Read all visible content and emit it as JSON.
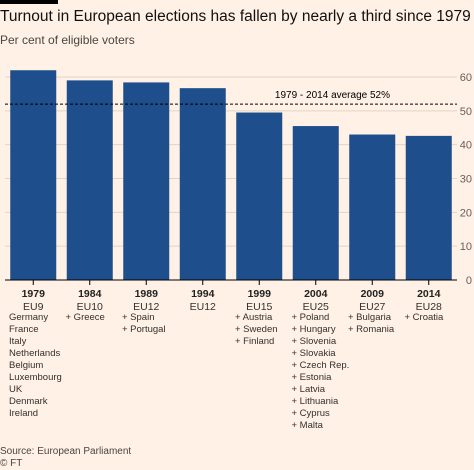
{
  "title": "Turnout in European elections has fallen by nearly a third since 1979",
  "subtitle": "Per cent of eligible voters",
  "source": "Source: European Parliament",
  "credit": "© FT",
  "chart_data": {
    "type": "bar",
    "categories": [
      "1979",
      "1984",
      "1989",
      "1994",
      "1999",
      "2004",
      "2009",
      "2014"
    ],
    "eu_labels": [
      "EU9",
      "EU10",
      "EU12",
      "EU12",
      "EU15",
      "EU25",
      "EU27",
      "EU28"
    ],
    "values": [
      62,
      59,
      58.4,
      56.7,
      49.5,
      45.5,
      43,
      42.6
    ],
    "members": [
      [
        "Germany",
        "France",
        "Italy",
        "Netherlands",
        "Belgium",
        "Luxembourg",
        "UK",
        "Denmark",
        "Ireland"
      ],
      [
        "+ Greece"
      ],
      [
        "+ Spain",
        "+ Portugal"
      ],
      [],
      [
        "+ Austria",
        "+ Sweden",
        "+ Finland"
      ],
      [
        "+ Poland",
        "+ Hungary",
        "+ Slovenia",
        "+ Slovakia",
        "+ Czech Rep.",
        "+ Estonia",
        "+ Latvia",
        "+ Lithuania",
        "+ Cyprus",
        "+ Malta"
      ],
      [
        "+ Bulgaria",
        "+ Romania"
      ],
      [
        "+ Croatia"
      ]
    ],
    "yticks": [
      0,
      10,
      20,
      30,
      40,
      50,
      60
    ],
    "ylim": [
      0,
      62
    ],
    "average": {
      "value": 52,
      "label": "1979 - 2014 average 52%"
    },
    "grid": true,
    "colors": {
      "bar": "#1f4e8c",
      "grid": "#e3d3c4",
      "axis": "#000000",
      "text": "#33302e",
      "background": "#fff1e5"
    }
  }
}
